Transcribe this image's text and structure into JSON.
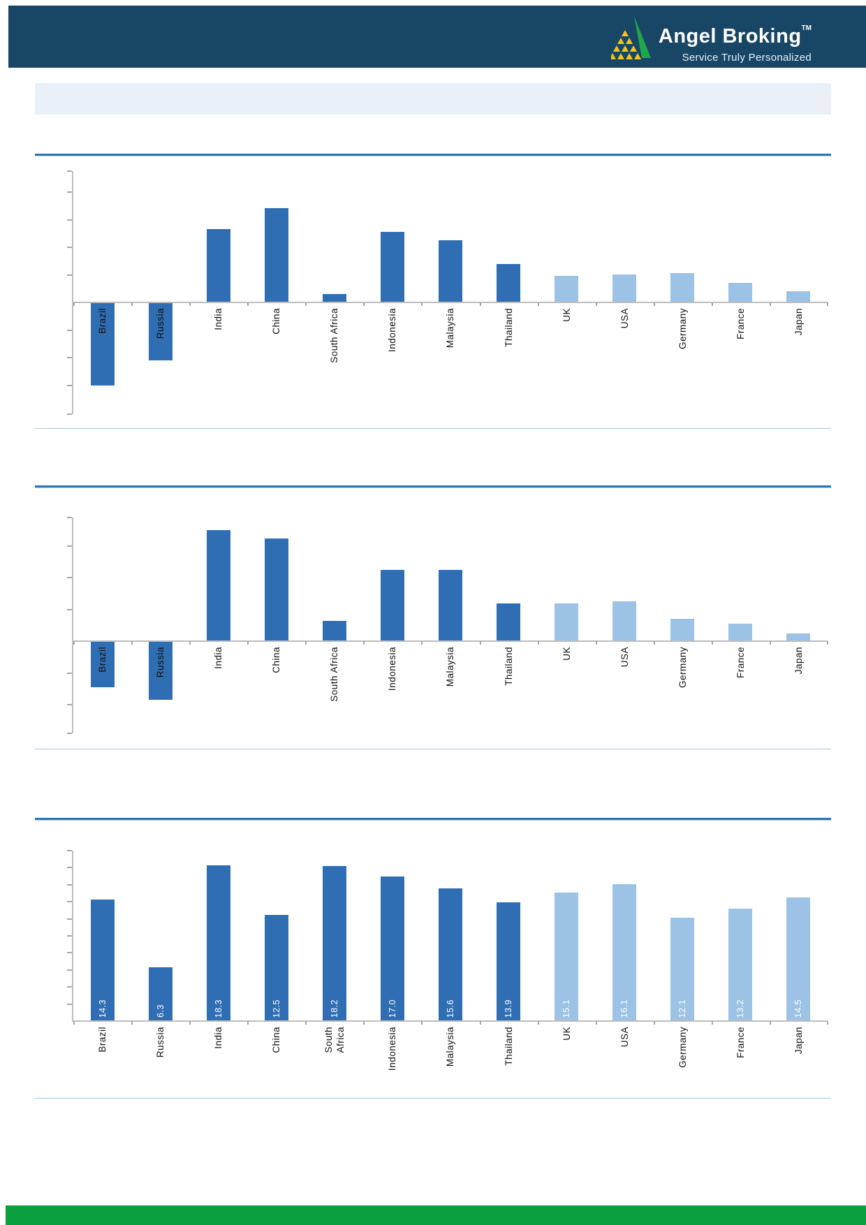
{
  "header": {
    "brand": "Angel Broking",
    "trademark": "TM",
    "tagline": "Service Truly Personalized"
  },
  "colors": {
    "header_bg": "#174667",
    "footer_bg": "#0BA03E",
    "logo_green": "#1FA74A",
    "logo_yellow": "#F3C517",
    "bar_dark": "#306EB4",
    "bar_light": "#9CC2E5",
    "section_rule": "#2E75B6",
    "separator": "#A9C4DC",
    "banner_bg": "#EAF0F7",
    "axis": "#BDBDBD"
  },
  "chart_data": [
    {
      "type": "bar",
      "categories": [
        "Brazil",
        "Russia",
        "India",
        "China",
        "South Africa",
        "Indonesia",
        "Malaysia",
        "Thailand",
        "UK",
        "USA",
        "Germany",
        "France",
        "Japan"
      ],
      "values": [
        -6.0,
        -4.2,
        5.3,
        6.8,
        0.6,
        5.1,
        4.5,
        2.8,
        1.9,
        2.0,
        2.1,
        1.4,
        0.8
      ],
      "ylim": [
        -8.1,
        9.5
      ],
      "ytick": 2,
      "grid": false,
      "legend": false,
      "xlabel": "",
      "ylabel": "",
      "dark_color": "#306EB4",
      "light_color": "#9CC2E5",
      "light_from_index": 8
    },
    {
      "type": "bar",
      "categories": [
        "Brazil",
        "Russia",
        "India",
        "China",
        "South Africa",
        "Indonesia",
        "Malaysia",
        "Thailand",
        "UK",
        "USA",
        "Germany",
        "France",
        "Japan"
      ],
      "values": [
        -2.9,
        -3.7,
        7.0,
        6.5,
        1.3,
        4.5,
        4.5,
        2.4,
        2.4,
        2.5,
        1.4,
        1.1,
        0.5
      ],
      "ylim": [
        -5.8,
        7.8
      ],
      "ytick": 2,
      "grid": false,
      "legend": false,
      "xlabel": "",
      "ylabel": "",
      "dark_color": "#306EB4",
      "light_color": "#9CC2E5",
      "light_from_index": 8
    },
    {
      "type": "bar",
      "categories": [
        "Brazil",
        "Russia",
        "India",
        "China",
        "South Africa",
        "Indonesia",
        "Malaysia",
        "Thailand",
        "UK",
        "USA",
        "Germany",
        "France",
        "Japan"
      ],
      "values": [
        14.3,
        6.3,
        18.3,
        12.5,
        18.2,
        17.0,
        15.6,
        13.9,
        15.1,
        16.1,
        12.1,
        13.2,
        14.5
      ],
      "value_labels": [
        "14.3",
        "6.3",
        "18.3",
        "12.5",
        "18.2",
        "17.0",
        "15.6",
        "13.9",
        "15.1",
        "16.1",
        "12.1",
        "13.2",
        "14.5"
      ],
      "ylim": [
        0,
        20
      ],
      "ytick": 2,
      "grid": false,
      "legend": false,
      "xlabel": "",
      "ylabel": "",
      "dark_color": "#306EB4",
      "light_color": "#9CC2E5",
      "light_from_index": 8
    }
  ]
}
